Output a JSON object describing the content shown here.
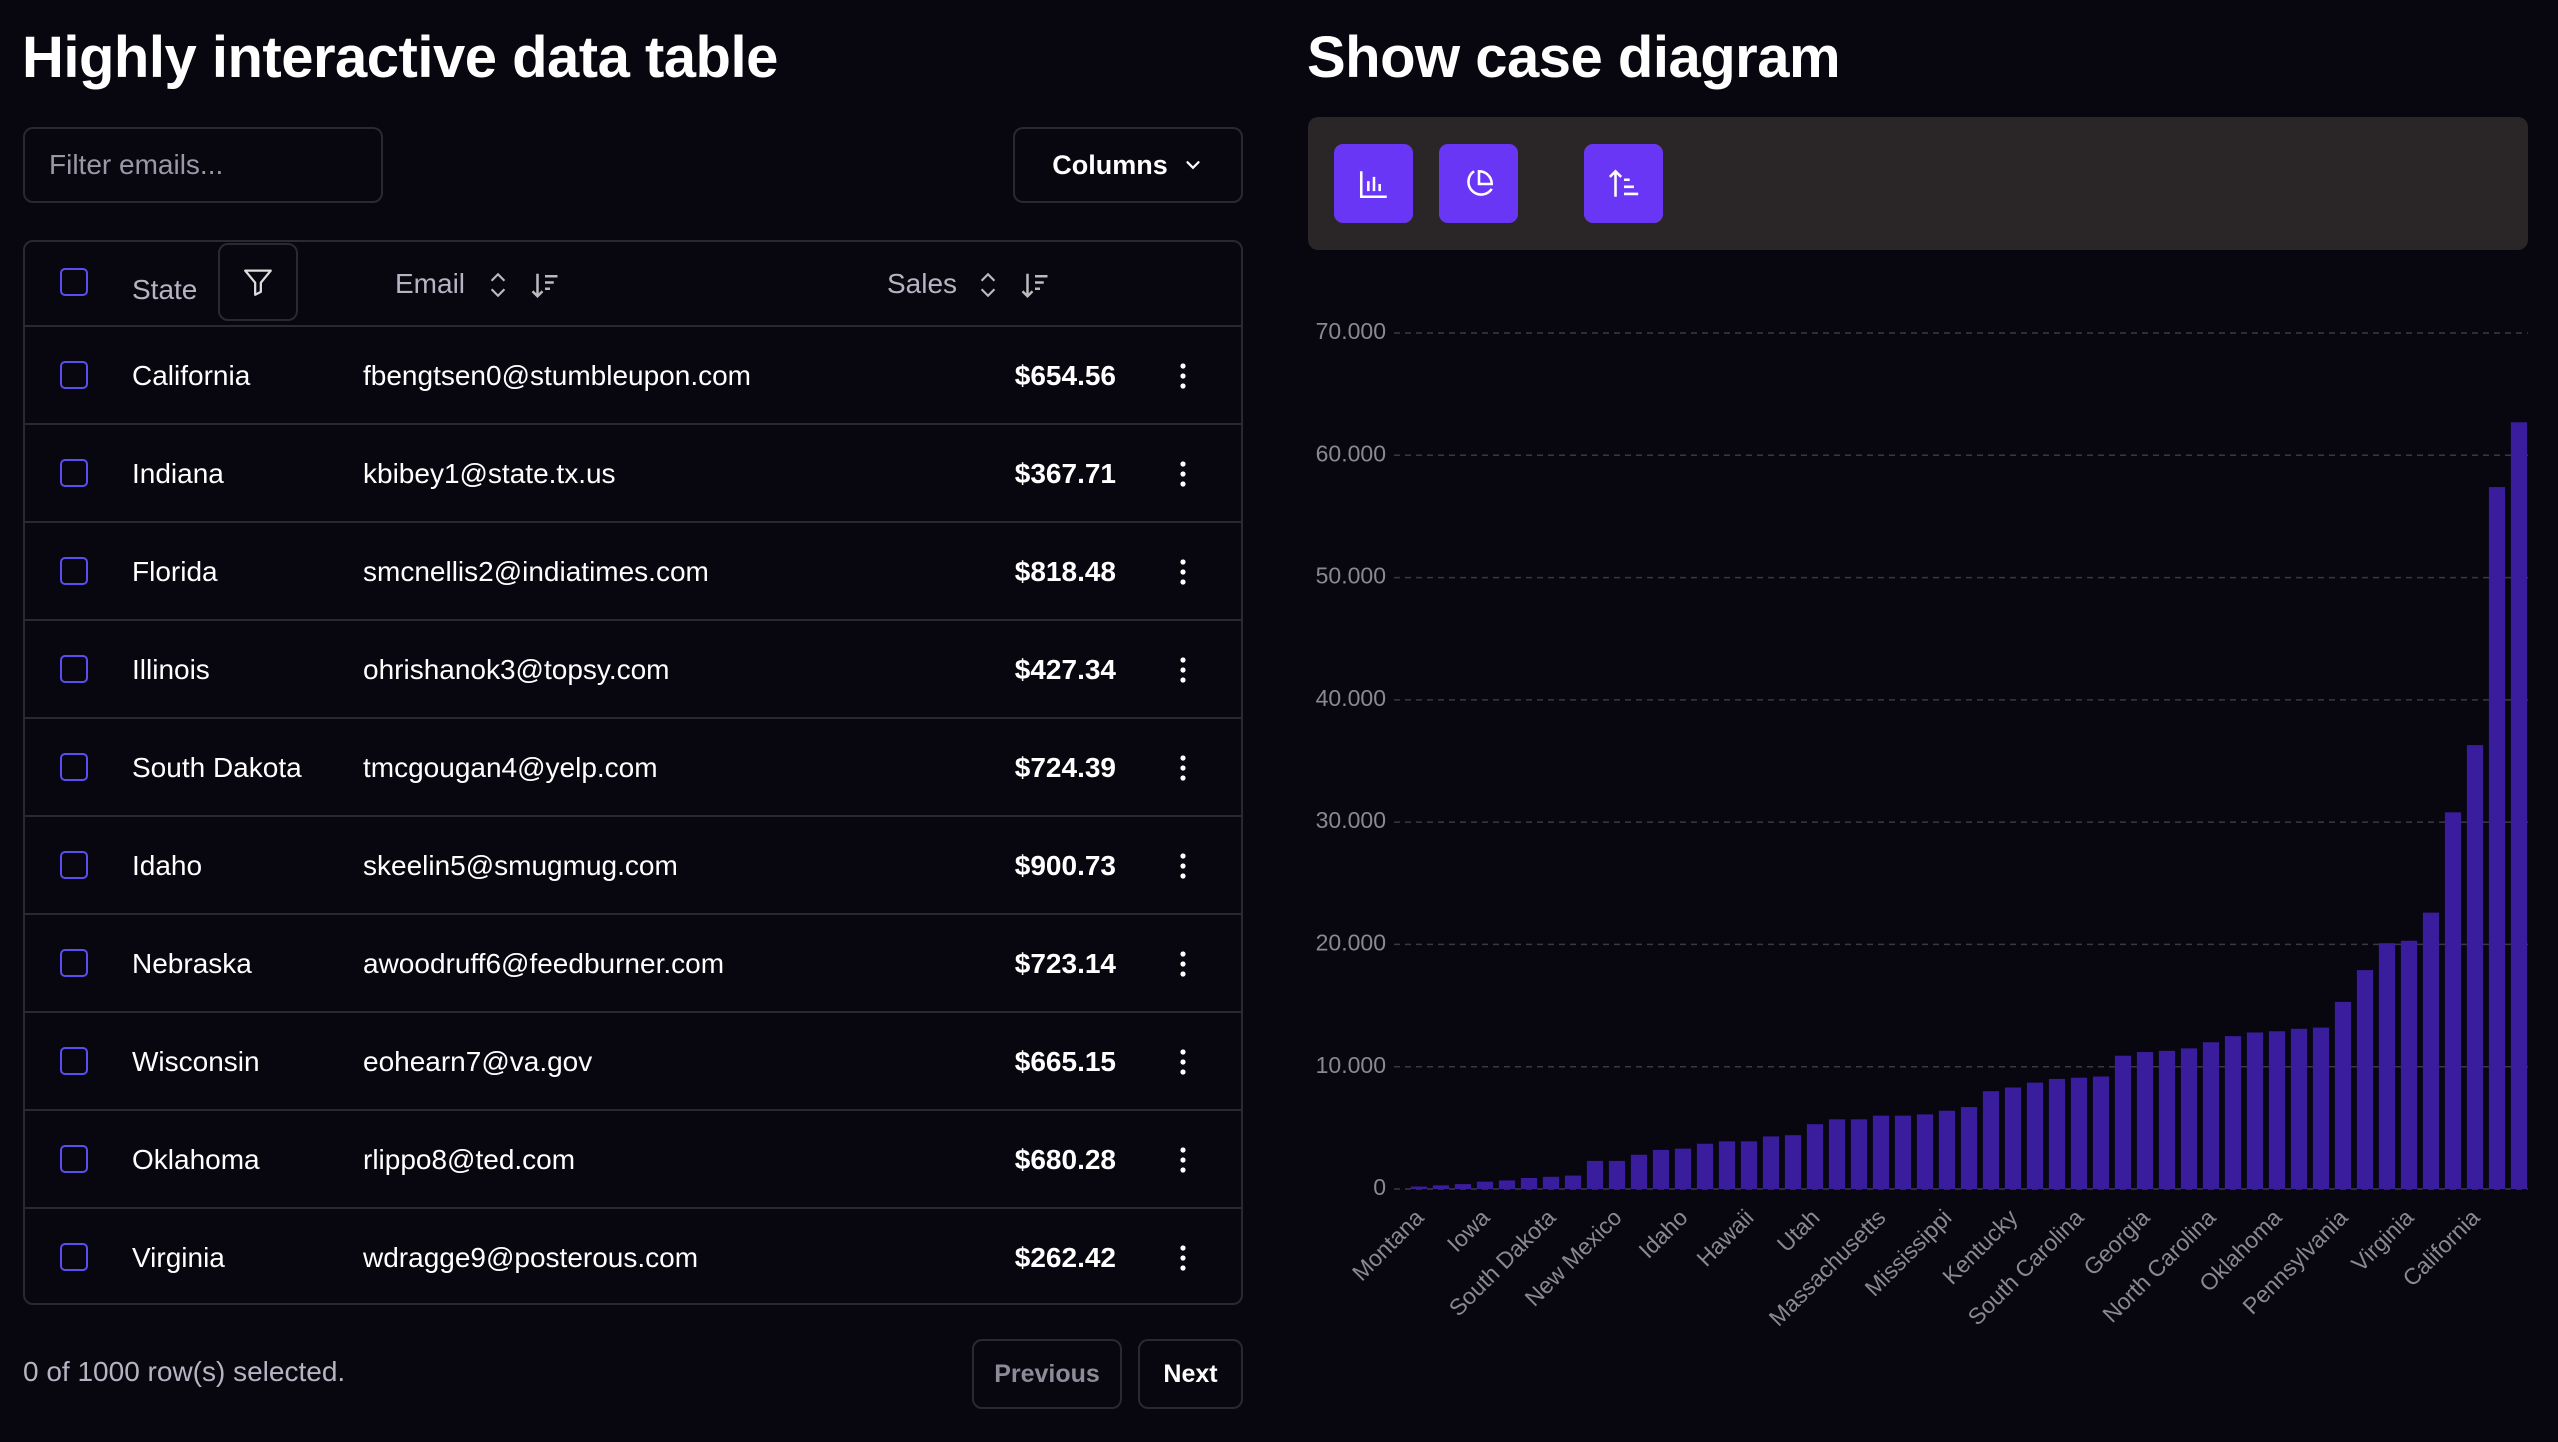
{
  "table_panel": {
    "title": "Highly interactive data table",
    "filter_placeholder": "Filter emails...",
    "columns_button": "Columns",
    "headers": [
      "State",
      "Email",
      "Sales"
    ],
    "rows": [
      [
        "California",
        "fbengtsen0@stumbleupon.com",
        "$654.56"
      ],
      [
        "Indiana",
        "kbibey1@state.tx.us",
        "$367.71"
      ],
      [
        "Florida",
        "smcnellis2@indiatimes.com",
        "$818.48"
      ],
      [
        "Illinois",
        "ohrishanok3@topsy.com",
        "$427.34"
      ],
      [
        "South Dakota",
        "tmcgougan4@yelp.com",
        "$724.39"
      ],
      [
        "Idaho",
        "skeelin5@smugmug.com",
        "$900.73"
      ],
      [
        "Nebraska",
        "awoodruff6@feedburner.com",
        "$723.14"
      ],
      [
        "Wisconsin",
        "eohearn7@va.gov",
        "$665.15"
      ],
      [
        "Oklahoma",
        "rlippo8@ted.com",
        "$680.28"
      ],
      [
        "Virginia",
        "wdragge9@posterous.com",
        "$262.42"
      ]
    ],
    "selection_status": "0 of 1000 row(s) selected.",
    "previous_button": "Previous",
    "next_button": "Next"
  },
  "chart_panel": {
    "title": "Show case diagram"
  },
  "chart_data": {
    "type": "bar",
    "color": "#3a1d9c",
    "grid": true,
    "categories": [
      "Montana",
      null,
      null,
      "Iowa",
      null,
      null,
      "South Dakota",
      null,
      null,
      "New Mexico",
      null,
      null,
      "Idaho",
      null,
      null,
      "Hawaii",
      null,
      null,
      "Utah",
      null,
      null,
      "Massachusetts",
      null,
      null,
      "Mississippi",
      null,
      null,
      "Kentucky",
      null,
      null,
      "South Carolina",
      null,
      null,
      "Georgia",
      null,
      null,
      "North Carolina",
      null,
      null,
      "Oklahoma",
      null,
      null,
      "Pennsylvania",
      null,
      null,
      "Virginia",
      null,
      null,
      "California",
      null,
      null
    ],
    "values": [
      200,
      300,
      400,
      600,
      700,
      900,
      1000,
      1100,
      2300,
      2300,
      2800,
      3200,
      3300,
      3700,
      3900,
      3900,
      4300,
      4400,
      5300,
      5700,
      5700,
      6000,
      6000,
      6100,
      6400,
      6700,
      8000,
      8300,
      8700,
      9000,
      9100,
      9200,
      10900,
      11200,
      11300,
      11500,
      12000,
      12500,
      12800,
      12900,
      13100,
      13200,
      15300,
      17900,
      20100,
      20300,
      22600,
      30800,
      36300,
      57400,
      62700
    ],
    "ylim": [
      0,
      70000
    ],
    "yticks": [
      0,
      {
        "value": 10000,
        "label": "10.000"
      },
      {
        "value": 20000,
        "label": "20.000"
      },
      {
        "value": 30000,
        "label": "30.000"
      },
      {
        "value": 40000,
        "label": "40.000"
      },
      {
        "value": 50000,
        "label": "50.000"
      },
      {
        "value": 60000,
        "label": "60.000"
      },
      {
        "value": 70000,
        "label": "70.000"
      }
    ]
  }
}
